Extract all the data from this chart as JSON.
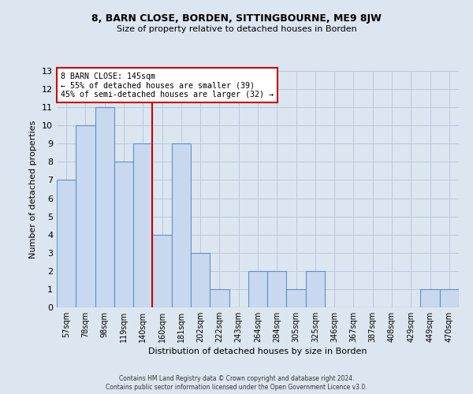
{
  "title_line1": "8, BARN CLOSE, BORDEN, SITTINGBOURNE, ME9 8JW",
  "title_line2": "Size of property relative to detached houses in Borden",
  "xlabel": "Distribution of detached houses by size in Borden",
  "ylabel": "Number of detached properties",
  "bar_labels": [
    "57sqm",
    "78sqm",
    "98sqm",
    "119sqm",
    "140sqm",
    "160sqm",
    "181sqm",
    "202sqm",
    "222sqm",
    "243sqm",
    "264sqm",
    "284sqm",
    "305sqm",
    "325sqm",
    "346sqm",
    "367sqm",
    "387sqm",
    "408sqm",
    "429sqm",
    "449sqm",
    "470sqm"
  ],
  "bar_values": [
    7,
    10,
    11,
    8,
    9,
    4,
    9,
    3,
    1,
    0,
    2,
    2,
    1,
    2,
    0,
    0,
    0,
    0,
    0,
    1,
    1
  ],
  "bar_color": "#c8d8ef",
  "bar_edge_color": "#6090c8",
  "vline_x_index": 4,
  "annotation_text_line1": "8 BARN CLOSE: 145sqm",
  "annotation_text_line2": "← 55% of detached houses are smaller (39)",
  "annotation_text_line3": "45% of semi-detached houses are larger (32) →",
  "annotation_box_color": "#ffffff",
  "annotation_box_edge_color": "#cc0000",
  "vline_color": "#cc0000",
  "ylim": [
    0,
    13
  ],
  "yticks": [
    0,
    1,
    2,
    3,
    4,
    5,
    6,
    7,
    8,
    9,
    10,
    11,
    12,
    13
  ],
  "grid_color": "#b8c8dc",
  "bg_color": "#dce6f0",
  "footer_line1": "Contains HM Land Registry data © Crown copyright and database right 2024.",
  "footer_line2": "Contains public sector information licensed under the Open Government Licence v3.0."
}
